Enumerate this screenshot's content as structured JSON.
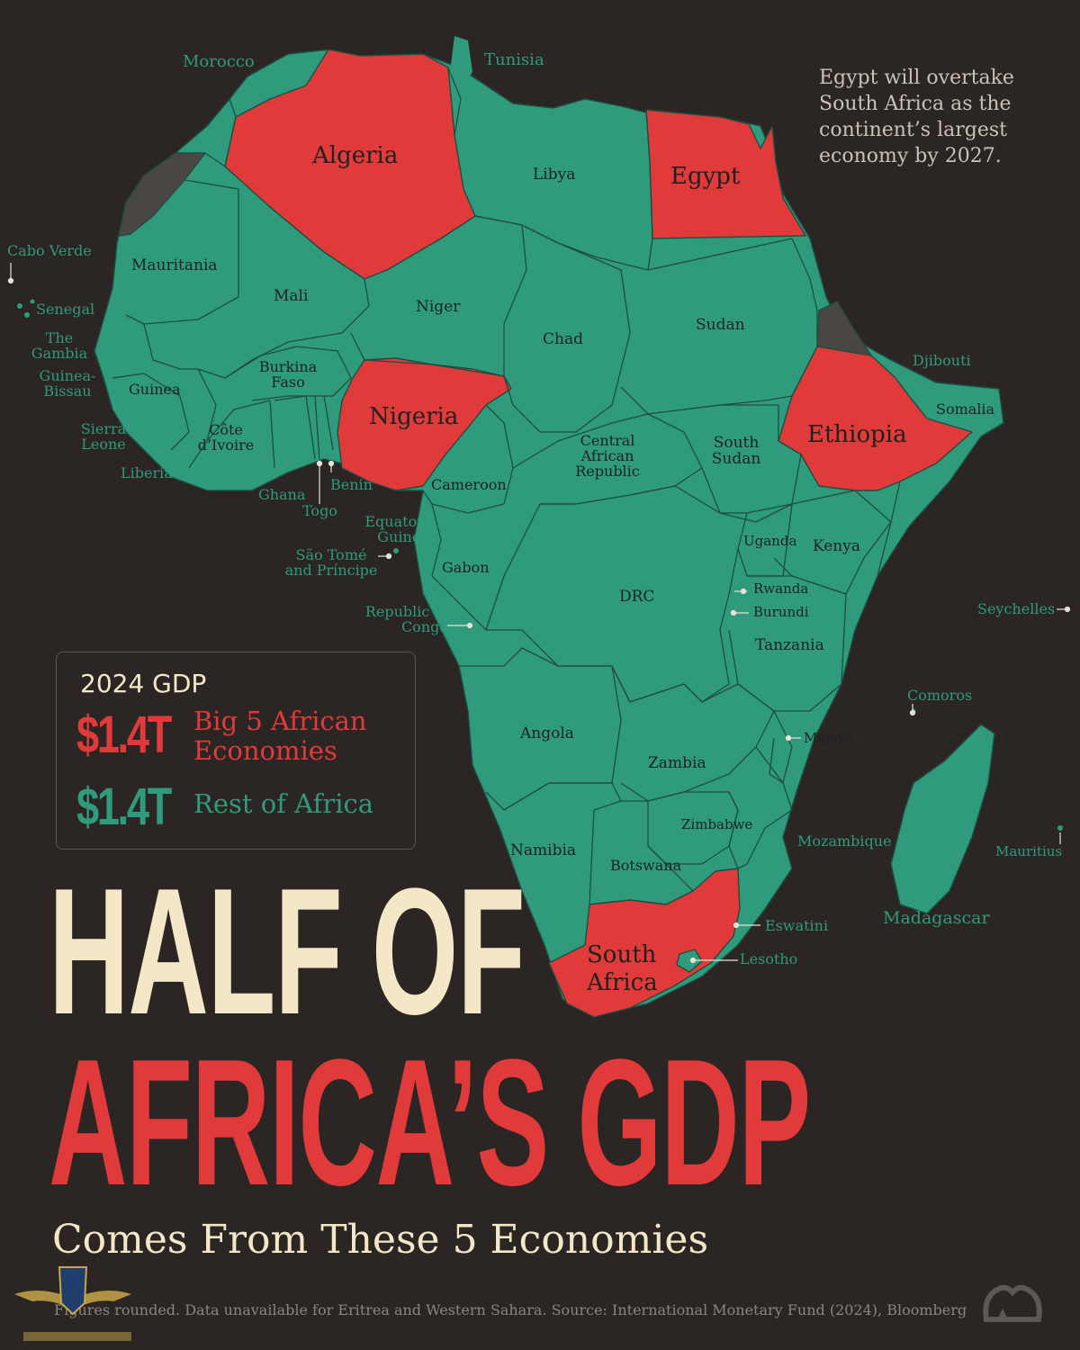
{
  "note": "Egypt will overtake South Africa as the continent’s largest economy by 2027.",
  "legend": {
    "title": "2024 GDP",
    "big5": {
      "value": "$1.4T",
      "label_line1": "Big 5 African",
      "label_line2": "Economies",
      "color": "#e03a3a"
    },
    "rest": {
      "value": "$1.4T",
      "label": "Rest of Africa",
      "color": "#2f9a7c"
    }
  },
  "headline": {
    "line1": "HALF OF",
    "line2": "AFRICA’S GDP",
    "sub": "Comes From These 5 Economies"
  },
  "footer": "Figures rounded. Data unavailable for Eritrea and Western Sahara. Source: International Monetary Fund (2024), Bloomberg",
  "colors": {
    "background": "#2b2623",
    "land": "#2f9a7c",
    "highlight": "#e03a3a",
    "no_data": "#4a4644",
    "headline_cream": "#f3e7c8"
  },
  "big5": [
    "Algeria",
    "Egypt",
    "Nigeria",
    "Ethiopia",
    "South Africa"
  ],
  "countries": {
    "morocco": "Morocco",
    "tunisia": "Tunisia",
    "algeria": "Algeria",
    "libya": "Libya",
    "egypt": "Egypt",
    "mauritania": "Mauritania",
    "mali": "Mali",
    "niger": "Niger",
    "chad": "Chad",
    "sudan": "Sudan",
    "cabo_verde": "Cabo Verde",
    "senegal": "Senegal",
    "gambia": "The Gambia",
    "guinea_bissau": "Guinea-Bissau",
    "guinea": "Guinea",
    "burkina": "Burkina Faso",
    "sierra_leone": "Sierra Leone",
    "liberia": "Liberia",
    "cote": "Côte d’Ivoire",
    "ghana": "Ghana",
    "togo": "Togo",
    "benin": "Benin",
    "nigeria": "Nigeria",
    "cameroon": "Cameroon",
    "car": "Central African Republic",
    "south_sudan": "South Sudan",
    "ethiopia": "Ethiopia",
    "djibouti": "Djibouti",
    "somalia": "Somalia",
    "eq_guinea": "Equatorial Guinea",
    "sao_tome": "São Tomé and Príncipe",
    "gabon": "Gabon",
    "congo": "Republic of Congo",
    "drc": "DRC",
    "uganda": "Uganda",
    "kenya": "Kenya",
    "rwanda": "Rwanda",
    "burundi": "Burundi",
    "tanzania": "Tanzania",
    "seychelles": "Seychelles",
    "angola": "Angola",
    "zambia": "Zambia",
    "malawi": "Malawi",
    "comoros": "Comoros",
    "zimbabwe": "Zimbabwe",
    "mozambique": "Mozambique",
    "namibia": "Namibia",
    "botswana": "Botswana",
    "mauritius": "Mauritius",
    "madagascar": "Madagascar",
    "eswatini": "Eswatini",
    "lesotho": "Lesotho",
    "south_africa": "South Africa"
  }
}
